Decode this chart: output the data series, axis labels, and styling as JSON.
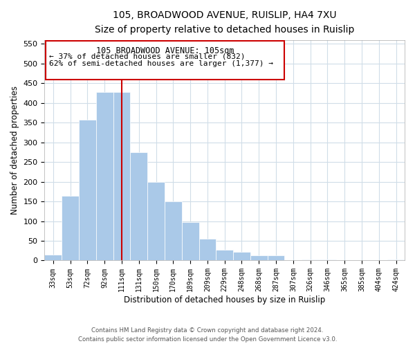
{
  "title": "105, BROADWOOD AVENUE, RUISLIP, HA4 7XU",
  "subtitle": "Size of property relative to detached houses in Ruislip",
  "xlabel": "Distribution of detached houses by size in Ruislip",
  "ylabel": "Number of detached properties",
  "bin_labels": [
    "33sqm",
    "53sqm",
    "72sqm",
    "92sqm",
    "111sqm",
    "131sqm",
    "150sqm",
    "170sqm",
    "189sqm",
    "209sqm",
    "229sqm",
    "248sqm",
    "268sqm",
    "287sqm",
    "307sqm",
    "326sqm",
    "346sqm",
    "365sqm",
    "385sqm",
    "404sqm",
    "424sqm"
  ],
  "bar_heights": [
    15,
    165,
    358,
    428,
    428,
    275,
    200,
    150,
    97,
    55,
    28,
    22,
    13,
    14,
    0,
    3,
    3,
    0,
    0,
    0,
    2
  ],
  "bar_color": "#aac9e8",
  "bar_edge_color": "#aac9e8",
  "vline_x": 4,
  "vline_color": "#cc0000",
  "ylim": [
    0,
    560
  ],
  "yticks": [
    0,
    50,
    100,
    150,
    200,
    250,
    300,
    350,
    400,
    450,
    500,
    550
  ],
  "annotation_title": "105 BROADWOOD AVENUE: 105sqm",
  "annotation_line1": "← 37% of detached houses are smaller (832)",
  "annotation_line2": "62% of semi-detached houses are larger (1,377) →",
  "footer_line1": "Contains HM Land Registry data © Crown copyright and database right 2024.",
  "footer_line2": "Contains public sector information licensed under the Open Government Licence v3.0.",
  "bg_color": "#ffffff",
  "grid_color": "#d0dde8"
}
